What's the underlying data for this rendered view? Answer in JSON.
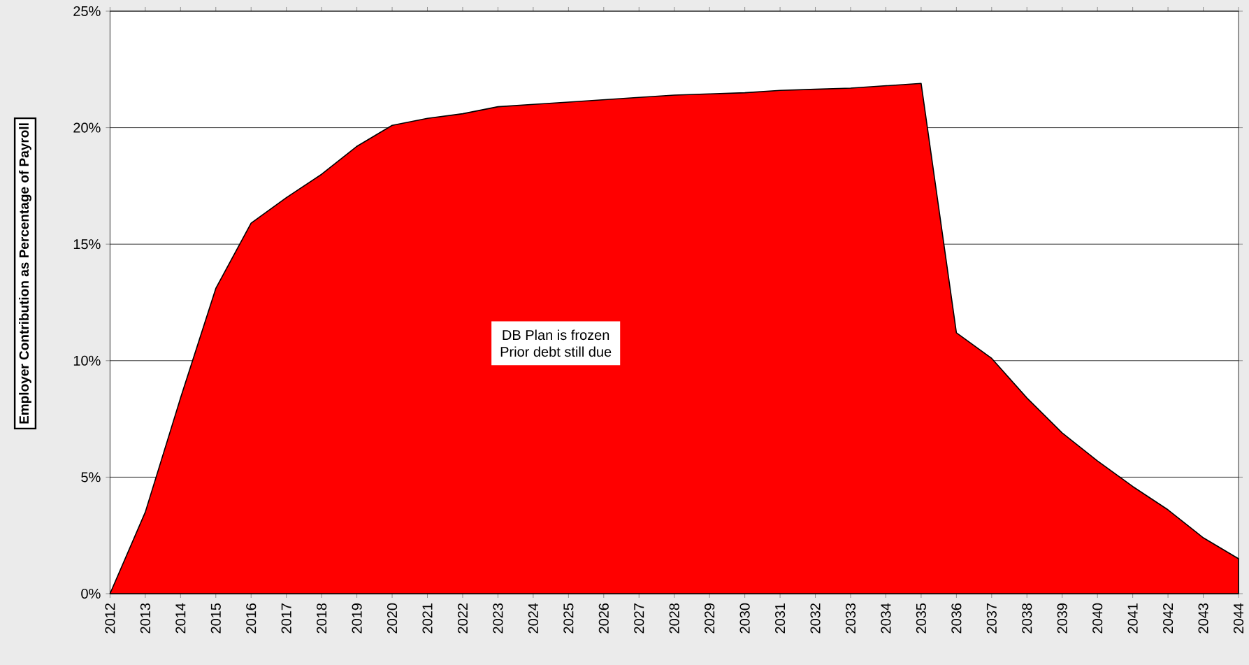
{
  "chart_data": {
    "type": "area",
    "ylabel": "Employer Contribution as Percentage of Payroll",
    "annotations": [
      "DB Plan is frozen",
      "Prior debt still due"
    ],
    "categories": [
      "2012",
      "2013",
      "2014",
      "2015",
      "2016",
      "2017",
      "2018",
      "2019",
      "2020",
      "2021",
      "2022",
      "2023",
      "2024",
      "2025",
      "2026",
      "2027",
      "2028",
      "2029",
      "2030",
      "2031",
      "2032",
      "2033",
      "2034",
      "2035",
      "2036",
      "2037",
      "2038",
      "2039",
      "2040",
      "2041",
      "2042",
      "2043",
      "2044"
    ],
    "values": [
      0,
      3.5,
      8.4,
      13.1,
      15.9,
      17.0,
      18.0,
      19.2,
      20.1,
      20.4,
      20.6,
      20.9,
      21.0,
      21.1,
      21.2,
      21.3,
      21.4,
      21.45,
      21.5,
      21.6,
      21.65,
      21.7,
      21.8,
      21.9,
      11.2,
      10.1,
      8.4,
      6.9,
      5.7,
      4.6,
      3.6,
      2.4,
      1.5
    ],
    "color": "#ff0000",
    "ylim": [
      0,
      25
    ],
    "yticks": [
      {
        "value": 0,
        "label": "0%"
      },
      {
        "value": 5,
        "label": "5%"
      },
      {
        "value": 10,
        "label": "10%"
      },
      {
        "value": 15,
        "label": "15%"
      },
      {
        "value": 20,
        "label": "20%"
      },
      {
        "value": 25,
        "label": "25%"
      }
    ],
    "grid": "y"
  }
}
